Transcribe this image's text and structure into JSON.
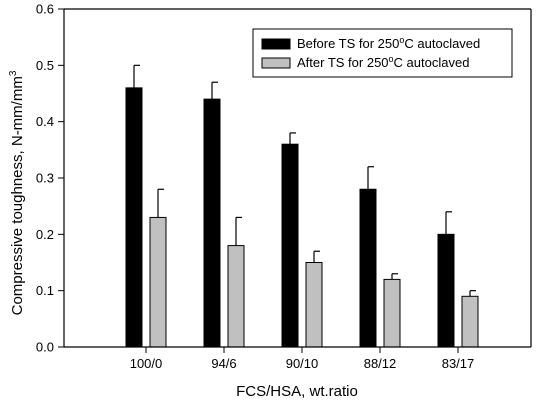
{
  "chart_data": {
    "type": "bar",
    "title": "",
    "xlabel": "FCS/HSA, wt.ratio",
    "ylabel": {
      "main": "Compressive toughness, N-mm/mm",
      "sup": "3"
    },
    "categories": [
      "100/0",
      "94/6",
      "90/10",
      "88/12",
      "83/17"
    ],
    "ylim": [
      0.0,
      0.6
    ],
    "yticks": [
      "0.0",
      "0.1",
      "0.2",
      "0.3",
      "0.4",
      "0.5",
      "0.6"
    ],
    "ytick_values": [
      0.0,
      0.1,
      0.2,
      0.3,
      0.4,
      0.5,
      0.6
    ],
    "grid": false,
    "legend_position": "top-right",
    "series": [
      {
        "name": {
          "pre": "Before TS for 250",
          "sup": "o",
          "post": "C autoclaved"
        },
        "color": "#000000",
        "values": [
          0.46,
          0.44,
          0.36,
          0.28,
          0.2
        ],
        "errors": [
          0.04,
          0.03,
          0.02,
          0.04,
          0.04
        ]
      },
      {
        "name": {
          "pre": "After TS for 250",
          "sup": "o",
          "post": "C autoclaved"
        },
        "color": "#c0c0c0",
        "values": [
          0.23,
          0.18,
          0.15,
          0.12,
          0.09
        ],
        "errors": [
          0.05,
          0.05,
          0.02,
          0.01,
          0.01
        ]
      }
    ]
  }
}
